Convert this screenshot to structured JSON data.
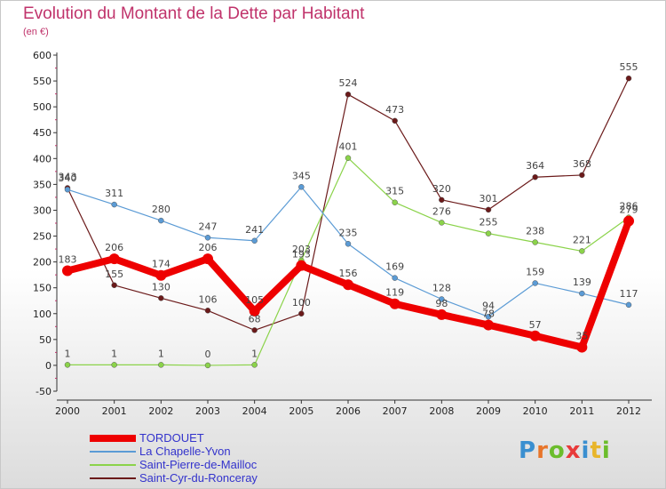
{
  "header": {
    "title": "Evolution du Montant de la Dette par Habitant",
    "subtitle": "(en €)"
  },
  "logo": {
    "text": "Proxiti",
    "letter_colors": [
      "#3a8fd0",
      "#e8752a",
      "#6bbd2c",
      "#e83a3a",
      "#3a8fd0",
      "#e8b52a",
      "#6bbd2c"
    ]
  },
  "chart_data": {
    "type": "line",
    "x": [
      "2000",
      "2001",
      "2002",
      "2003",
      "2004",
      "2005",
      "2006",
      "2007",
      "2008",
      "2009",
      "2010",
      "2011",
      "2012"
    ],
    "ylim": [
      -50,
      600
    ],
    "yticks": [
      -50,
      0,
      50,
      100,
      150,
      200,
      250,
      300,
      350,
      400,
      450,
      500,
      550,
      600
    ],
    "grid": false,
    "legend_position": "bottom-left",
    "series": [
      {
        "name": "TORDOUET",
        "color": "#ee0000",
        "values": [
          183,
          206,
          174,
          206,
          105,
          193,
          156,
          119,
          98,
          78,
          57,
          35,
          279
        ],
        "labels": [
          "183",
          "206",
          "174",
          "206",
          "105",
          "193",
          "156",
          "119",
          "98",
          "78",
          "57",
          "35",
          "279"
        ],
        "emphasis": true
      },
      {
        "name": "La Chapelle-Yvon",
        "color": "#5b9bd5",
        "values": [
          340,
          311,
          280,
          247,
          241,
          345,
          235,
          169,
          128,
          94,
          159,
          139,
          117
        ],
        "labels": [
          "340",
          "311",
          "280",
          "247",
          "241",
          "345",
          "235",
          "169",
          "128",
          "94",
          "159",
          "139",
          "117"
        ]
      },
      {
        "name": "Saint-Pierre-de-Mailloc",
        "color": "#8bd34a",
        "values": [
          1,
          1,
          1,
          0,
          1,
          203,
          401,
          315,
          276,
          255,
          238,
          221,
          286
        ],
        "labels": [
          "1",
          "1",
          "1",
          "0",
          "1",
          "203",
          "401",
          "315",
          "276",
          "255",
          "238",
          "221",
          "286"
        ]
      },
      {
        "name": "Saint-Cyr-du-Ronceray",
        "color": "#6b1a1a",
        "values": [
          343,
          155,
          130,
          106,
          68,
          100,
          524,
          473,
          320,
          301,
          364,
          368,
          555
        ],
        "labels": [
          "343",
          "155",
          "130",
          "106",
          "68",
          "100",
          "524",
          "473",
          "320",
          "301",
          "364",
          "368",
          "555"
        ]
      }
    ]
  }
}
